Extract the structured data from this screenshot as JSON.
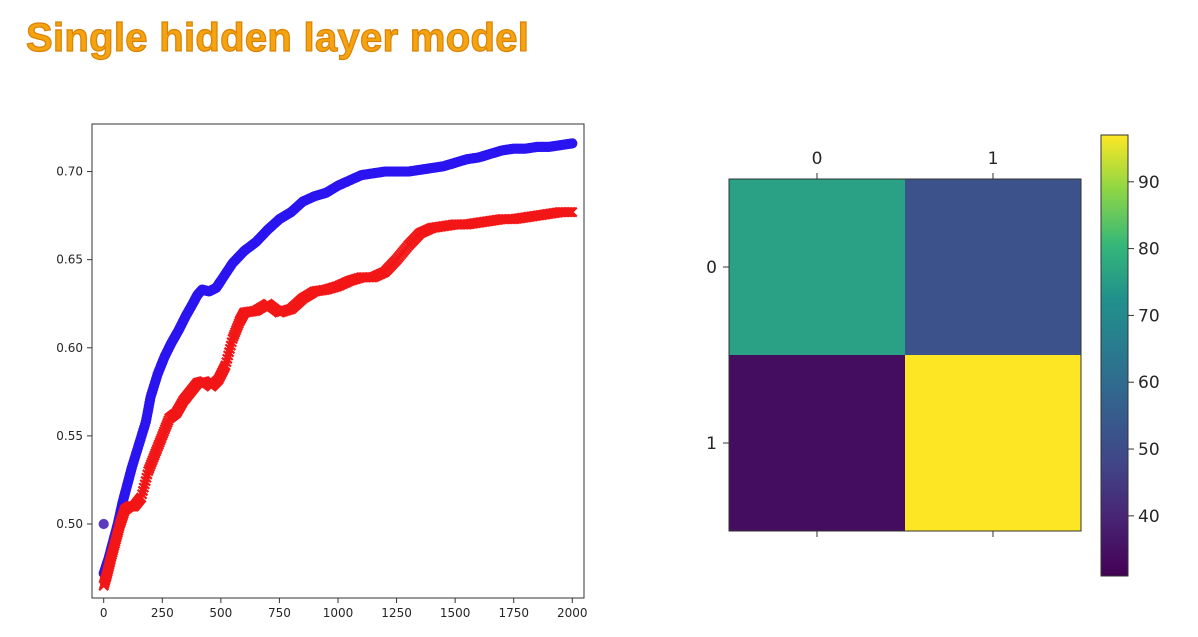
{
  "slide": {
    "title": "Single hidden layer model"
  },
  "colors": {
    "title": "#f5a30f",
    "series_a": "#2a14f0",
    "series_b": "#f21616"
  },
  "chart_data": [
    {
      "type": "scatter",
      "xlim": [
        -50,
        2050
      ],
      "ylim": [
        0.458,
        0.727
      ],
      "xticks": [
        0,
        250,
        500,
        750,
        1000,
        1250,
        1500,
        1750,
        2000
      ],
      "yticks": [
        0.5,
        0.55,
        0.6,
        0.65,
        0.7
      ],
      "series": [
        {
          "marker": "circle",
          "color": "#2a14f0",
          "outliers": [
            [
              0,
              0.5
            ]
          ],
          "x": [
            0,
            20,
            40,
            60,
            80,
            100,
            120,
            150,
            180,
            200,
            230,
            260,
            290,
            320,
            350,
            380,
            400,
            420,
            450,
            480,
            500,
            550,
            600,
            650,
            700,
            750,
            800,
            850,
            900,
            950,
            1000,
            1050,
            1100,
            1150,
            1200,
            1250,
            1300,
            1350,
            1400,
            1450,
            1500,
            1550,
            1600,
            1650,
            1700,
            1750,
            1800,
            1850,
            1900,
            1950,
            2000
          ],
          "y": [
            0.472,
            0.48,
            0.49,
            0.5,
            0.512,
            0.522,
            0.532,
            0.545,
            0.558,
            0.572,
            0.585,
            0.595,
            0.603,
            0.61,
            0.618,
            0.625,
            0.63,
            0.633,
            0.632,
            0.634,
            0.638,
            0.648,
            0.655,
            0.66,
            0.667,
            0.673,
            0.677,
            0.683,
            0.686,
            0.688,
            0.692,
            0.695,
            0.698,
            0.699,
            0.7,
            0.7,
            0.7,
            0.701,
            0.702,
            0.703,
            0.705,
            0.707,
            0.708,
            0.71,
            0.712,
            0.713,
            0.713,
            0.714,
            0.714,
            0.715,
            0.716
          ]
        },
        {
          "marker": "x",
          "color": "#f21616",
          "x": [
            0,
            15,
            30,
            50,
            70,
            90,
            110,
            130,
            160,
            190,
            220,
            250,
            280,
            310,
            340,
            370,
            400,
            430,
            460,
            490,
            520,
            550,
            580,
            600,
            650,
            700,
            750,
            800,
            850,
            900,
            950,
            1000,
            1050,
            1100,
            1150,
            1200,
            1250,
            1300,
            1350,
            1400,
            1450,
            1500,
            1550,
            1600,
            1650,
            1700,
            1750,
            1800,
            1850,
            1900,
            1950,
            2000
          ],
          "y": [
            0.465,
            0.472,
            0.48,
            0.49,
            0.5,
            0.508,
            0.51,
            0.51,
            0.515,
            0.53,
            0.54,
            0.55,
            0.56,
            0.563,
            0.57,
            0.575,
            0.58,
            0.581,
            0.578,
            0.582,
            0.59,
            0.605,
            0.615,
            0.62,
            0.621,
            0.625,
            0.62,
            0.622,
            0.628,
            0.632,
            0.633,
            0.635,
            0.638,
            0.64,
            0.64,
            0.643,
            0.65,
            0.658,
            0.665,
            0.668,
            0.669,
            0.67,
            0.67,
            0.671,
            0.672,
            0.673,
            0.673,
            0.674,
            0.675,
            0.676,
            0.677,
            0.677
          ]
        }
      ]
    },
    {
      "type": "heatmap",
      "row_labels": [
        "0",
        "1"
      ],
      "col_labels": [
        "0",
        "1"
      ],
      "values": [
        [
          76,
          52
        ],
        [
          34,
          97
        ]
      ],
      "colorbar": {
        "min": 31,
        "max": 97,
        "ticks": [
          40,
          50,
          60,
          70,
          80,
          90
        ]
      }
    }
  ]
}
